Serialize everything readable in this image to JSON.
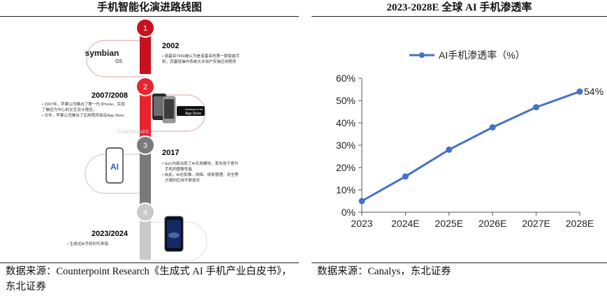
{
  "left_panel": {
    "title": "手机智能化演进路线图",
    "source": "数据来源：Counterpoint Research《生成式 AI 手机产业白皮书》，东北证券",
    "roadmap": [
      {
        "step": "1",
        "year": "2002",
        "desc_lines": [
          "• 诺基亚7650被认为是诺基亚的第一款智能手",
          "机，其塞班操作系统允许用户安装应用程序"
        ],
        "badge_line1": "symbian",
        "badge_line2": "OS",
        "color": "#c9101d"
      },
      {
        "step": "2",
        "year": "2007/2008",
        "desc_lines": [
          "• 2007年，苹果公司推出了第一代 iPhone，实现",
          "了触控为中心的交互设计理念。",
          "• 次年，苹果公司推出了应用程序商店App Store"
        ],
        "store_small": "Download on the",
        "store_big": "App Store",
        "watermark": "Counterpoint",
        "color": "#e8232f"
      },
      {
        "step": "3",
        "year": "2017",
        "desc_lines": [
          "• SoC内部出现了AI专用模块，率先用于提升",
          "手机的图像性能",
          "• 自此，AI在影像、网络、续航管理、安全等",
          "方面的应用不断增长"
        ],
        "badge_text": "AI",
        "color": "#7a7a7a"
      },
      {
        "step": "4",
        "year": "2023/2024",
        "desc_lines": [
          "• 生成式AI手机时代来临"
        ],
        "color": "#c9c9c9"
      }
    ]
  },
  "right_panel": {
    "title": "2023-2028E 全球 AI 手机渗透率",
    "source": "数据来源：Canalys，东北证券",
    "chart_data": {
      "type": "line",
      "title": "2023-2028E 全球 AI 手机渗透率",
      "categories": [
        "2023",
        "2024E",
        "2025E",
        "2026E",
        "2027E",
        "2028E"
      ],
      "series": [
        {
          "name": "AI手机渗透率（%）",
          "values": [
            5,
            16,
            28,
            38,
            47,
            54
          ]
        }
      ],
      "ylim": [
        0,
        60
      ],
      "yticks": [
        "0%",
        "10%",
        "20%",
        "30%",
        "40%",
        "50%",
        "60%"
      ],
      "data_labels": [
        {
          "index": 5,
          "text": "54%"
        }
      ],
      "legend_position": "top-left",
      "grid": false,
      "color": "#4472c4"
    }
  }
}
